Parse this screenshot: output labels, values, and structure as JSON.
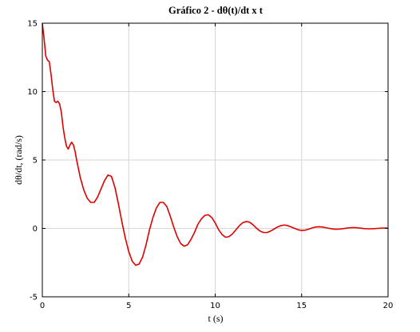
{
  "chart_data": {
    "type": "line",
    "title": "Gráfico 2 - dθ(t)/dt x t",
    "xlabel": "t (s)",
    "ylabel": "dθ/dt, (rad/s)",
    "xlim": [
      0,
      20
    ],
    "ylim": [
      -5,
      15
    ],
    "xticks": [
      "0",
      "5",
      "10",
      "15",
      "20"
    ],
    "yticks": [
      "-5",
      "0",
      "5",
      "10",
      "15"
    ],
    "grid": true,
    "series": [
      {
        "color": "#e00000",
        "x": [
          0,
          0.1,
          0.2,
          0.3,
          0.4,
          0.5,
          0.6,
          0.7,
          0.8,
          0.9,
          1.0,
          1.1,
          1.2,
          1.3,
          1.4,
          1.5,
          1.6,
          1.7,
          1.8,
          1.9,
          2.0,
          2.1,
          2.2,
          2.4,
          2.6,
          2.8,
          3.0,
          3.2,
          3.4,
          3.6,
          3.8,
          4.0,
          4.2,
          4.4,
          4.6,
          4.8,
          5.0,
          5.2,
          5.4,
          5.6,
          5.8,
          6.0,
          6.2,
          6.4,
          6.6,
          6.8,
          7.0,
          7.2,
          7.4,
          7.6,
          7.8,
          8.0,
          8.2,
          8.4,
          8.6,
          8.8,
          9.0,
          9.2,
          9.4,
          9.6,
          9.8,
          10.0,
          10.2,
          10.4,
          10.6,
          10.8,
          11.0,
          11.2,
          11.4,
          11.6,
          11.8,
          12.0,
          12.2,
          12.4,
          12.6,
          12.8,
          13.0,
          13.2,
          13.4,
          13.6,
          13.8,
          14.0,
          14.2,
          14.4,
          14.6,
          14.8,
          15.0,
          15.2,
          15.4,
          15.6,
          15.8,
          16.0,
          16.2,
          16.4,
          16.6,
          16.8,
          17.0,
          17.2,
          17.4,
          17.6,
          17.8,
          18.0,
          18.2,
          18.4,
          18.6,
          18.8,
          19.0,
          19.2,
          19.4,
          19.6,
          19.8,
          20.0
        ],
        "y": [
          15.0,
          13.9,
          12.6,
          12.3,
          12.2,
          11.3,
          10.2,
          9.3,
          9.2,
          9.3,
          9.1,
          8.5,
          7.4,
          6.6,
          6.0,
          5.8,
          6.1,
          6.3,
          6.1,
          5.6,
          4.9,
          4.3,
          3.7,
          2.8,
          2.2,
          1.9,
          1.9,
          2.3,
          2.9,
          3.5,
          3.9,
          3.8,
          3.0,
          1.8,
          0.5,
          -0.7,
          -1.7,
          -2.4,
          -2.7,
          -2.6,
          -2.1,
          -1.2,
          -0.1,
          0.8,
          1.5,
          1.9,
          1.9,
          1.6,
          0.9,
          0.1,
          -0.6,
          -1.1,
          -1.3,
          -1.2,
          -0.8,
          -0.3,
          0.3,
          0.7,
          0.95,
          1.0,
          0.8,
          0.4,
          -0.1,
          -0.45,
          -0.65,
          -0.6,
          -0.4,
          -0.1,
          0.2,
          0.42,
          0.5,
          0.45,
          0.25,
          0.0,
          -0.2,
          -0.3,
          -0.3,
          -0.2,
          -0.05,
          0.1,
          0.2,
          0.25,
          0.2,
          0.1,
          0.0,
          -0.1,
          -0.15,
          -0.13,
          -0.06,
          0.03,
          0.1,
          0.12,
          0.1,
          0.05,
          0.0,
          -0.04,
          -0.06,
          -0.05,
          -0.02,
          0.02,
          0.05,
          0.06,
          0.05,
          0.02,
          -0.01,
          -0.03,
          -0.03,
          -0.02,
          0.0,
          0.02,
          0.03,
          0.02
        ]
      }
    ]
  }
}
